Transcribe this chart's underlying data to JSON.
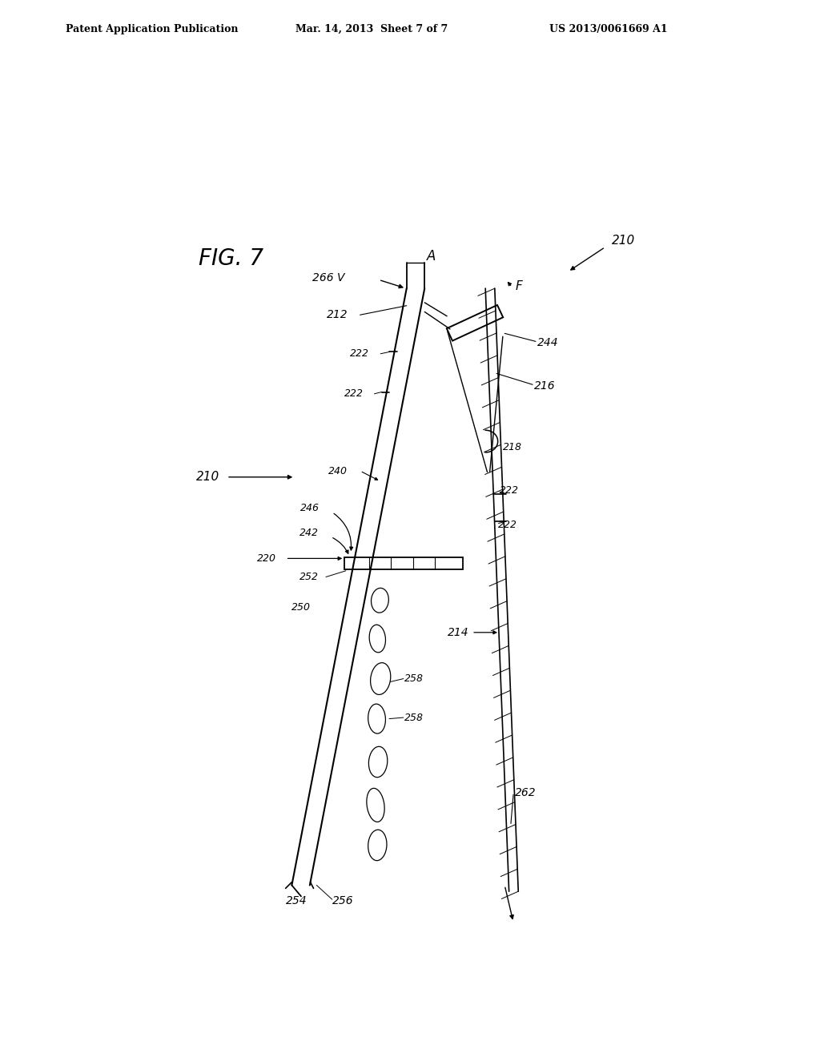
{
  "background_color": "#ffffff",
  "header_left": "Patent Application Publication",
  "header_center": "Mar. 14, 2013  Sheet 7 of 7",
  "header_right": "US 2013/0061669 A1",
  "fig_label": "FIG. 7",
  "fig_width": 10.24,
  "fig_height": 13.2,
  "dpi": 100
}
